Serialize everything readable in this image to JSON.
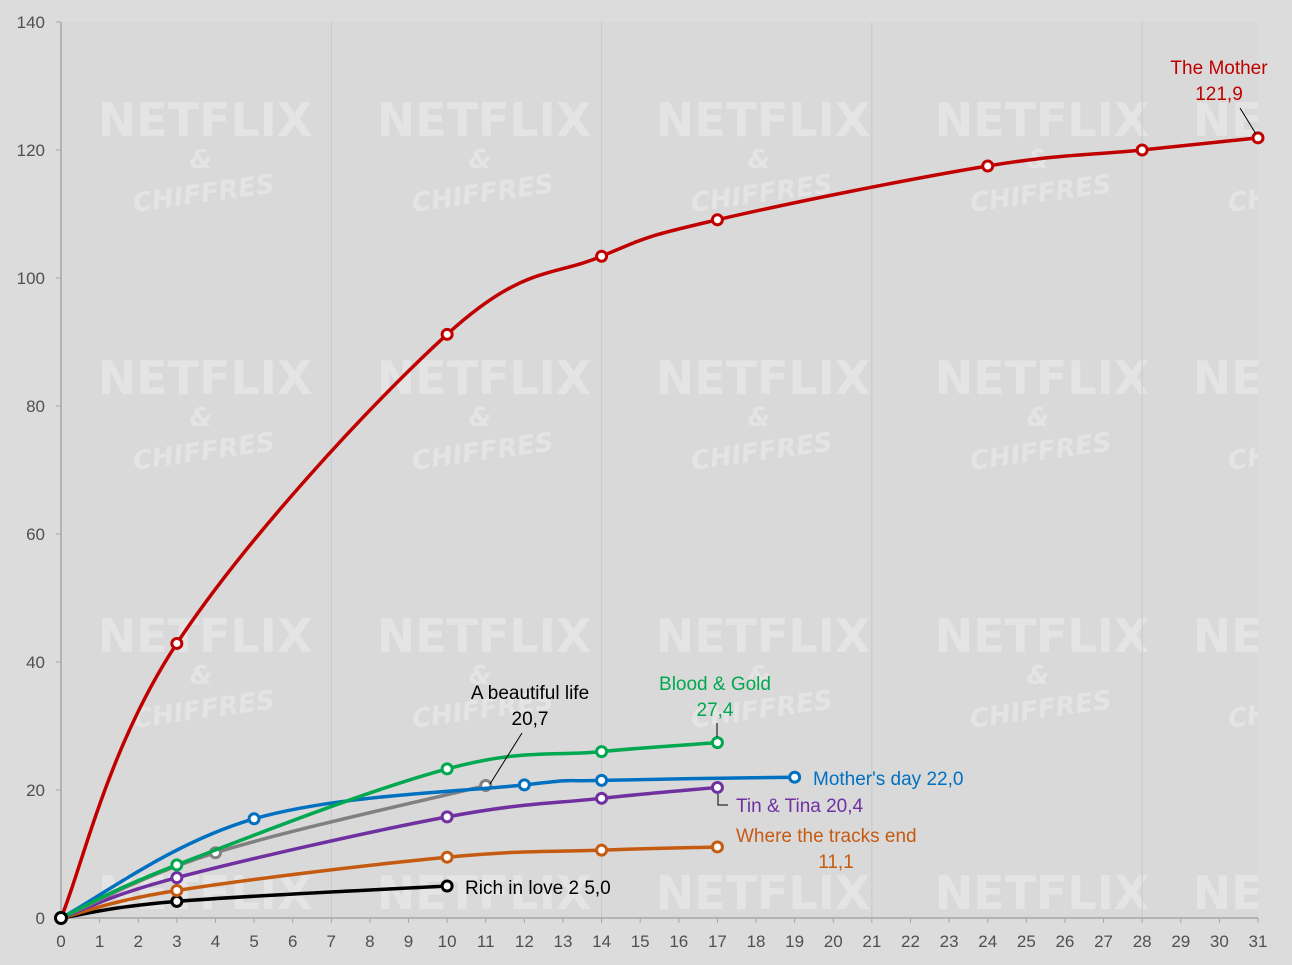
{
  "watermark": {
    "line1": "NETFLIX",
    "line2": "&",
    "line3": "CHIFFRES"
  },
  "chart_data": {
    "type": "line",
    "title": "",
    "xlabel": "",
    "ylabel": "",
    "xlim": [
      0,
      31
    ],
    "ylim": [
      0,
      140
    ],
    "x_ticks": [
      0,
      1,
      2,
      3,
      4,
      5,
      6,
      7,
      8,
      9,
      10,
      11,
      12,
      13,
      14,
      15,
      16,
      17,
      18,
      19,
      20,
      21,
      22,
      23,
      24,
      25,
      26,
      27,
      28,
      29,
      30,
      31
    ],
    "y_ticks": [
      0,
      20,
      40,
      60,
      80,
      100,
      120,
      140
    ],
    "grid": {
      "vertical_every": 7,
      "horizontal": false
    },
    "series": [
      {
        "name": "The Mother",
        "value_label": "121,9",
        "color": "#c00000",
        "points": [
          [
            0,
            0
          ],
          [
            3,
            42.9
          ],
          [
            10,
            91.2
          ],
          [
            14,
            103.4
          ],
          [
            17,
            109.1
          ],
          [
            24,
            117.5
          ],
          [
            28,
            120.0
          ],
          [
            31,
            121.9
          ]
        ]
      },
      {
        "name": "Blood & Gold",
        "value_label": "27,4",
        "color": "#00a84f",
        "points": [
          [
            0,
            0
          ],
          [
            3,
            8.3
          ],
          [
            10,
            23.3
          ],
          [
            14,
            26.0
          ],
          [
            17,
            27.4
          ]
        ]
      },
      {
        "name": "Mother's day",
        "value_label": "22,0",
        "color": "#0070c0",
        "points": [
          [
            0,
            0
          ],
          [
            5,
            15.5
          ],
          [
            12,
            20.8
          ],
          [
            14,
            21.5
          ],
          [
            19,
            22.0
          ]
        ]
      },
      {
        "name": "A beautiful life",
        "value_label": "20,7",
        "color": "#808080",
        "points": [
          [
            0,
            0
          ],
          [
            4,
            10.2
          ],
          [
            11,
            20.7
          ]
        ]
      },
      {
        "name": "Tin & Tina",
        "value_label": "20,4",
        "color": "#7030a0",
        "points": [
          [
            0,
            0
          ],
          [
            3,
            6.3
          ],
          [
            10,
            15.8
          ],
          [
            14,
            18.7
          ],
          [
            17,
            20.4
          ]
        ]
      },
      {
        "name": "Where the tracks end",
        "value_label": "11,1",
        "color": "#c55a11",
        "points": [
          [
            0,
            0
          ],
          [
            3,
            4.3
          ],
          [
            10,
            9.5
          ],
          [
            14,
            10.6
          ],
          [
            17,
            11.1
          ]
        ]
      },
      {
        "name": "Rich in love 2",
        "value_label": "5,0",
        "color": "#000000",
        "points": [
          [
            0,
            0
          ],
          [
            3,
            2.6
          ],
          [
            10,
            5.0
          ]
        ]
      }
    ]
  }
}
